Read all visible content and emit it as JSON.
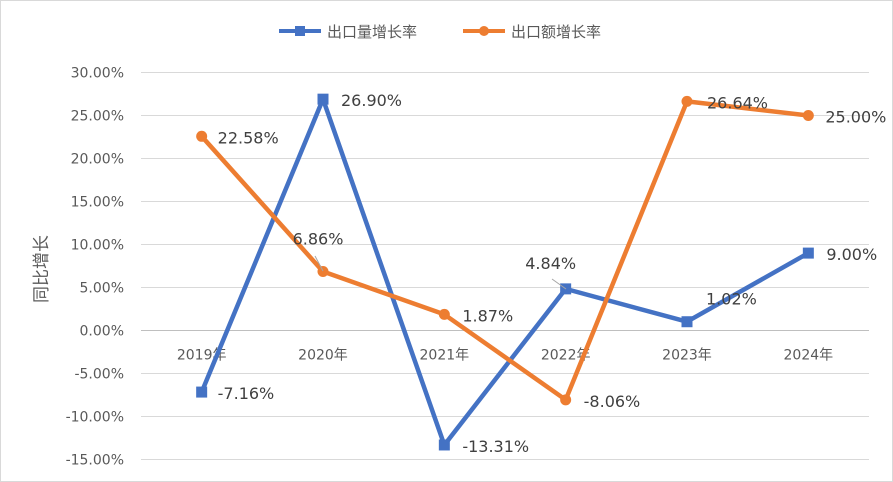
{
  "chart_data": {
    "type": "line",
    "title": "",
    "xlabel": "",
    "ylabel": "同比增长",
    "categories": [
      "2019年",
      "2020年",
      "2021年",
      "2022年",
      "2023年",
      "2024年"
    ],
    "ylim": [
      -15,
      30
    ],
    "yticks": [
      30,
      25,
      20,
      15,
      10,
      5,
      0,
      -5,
      -10,
      -15
    ],
    "ytick_labels": [
      "30.00%",
      "25.00%",
      "20.00%",
      "15.00%",
      "10.00%",
      "5.00%",
      "0.00%",
      "-5.00%",
      "-10.00%",
      "-15.00%"
    ],
    "grid": true,
    "legend_position": "top",
    "series": [
      {
        "name": "出口量增长率",
        "color": "#4472C4",
        "marker": "square",
        "values": [
          -7.16,
          26.9,
          -13.31,
          4.84,
          1.02,
          9.0
        ],
        "labels": [
          "-7.16%",
          "26.90%",
          "-13.31%",
          "4.84%",
          "1.02%",
          "9.00%"
        ]
      },
      {
        "name": "出口额增长率",
        "color": "#ED7D31",
        "marker": "circle",
        "values": [
          22.58,
          6.86,
          1.87,
          -8.06,
          26.64,
          25.0
        ],
        "labels": [
          "22.58%",
          "6.86%",
          "1.87%",
          "-8.06%",
          "26.64%",
          "25.00%"
        ]
      }
    ]
  }
}
